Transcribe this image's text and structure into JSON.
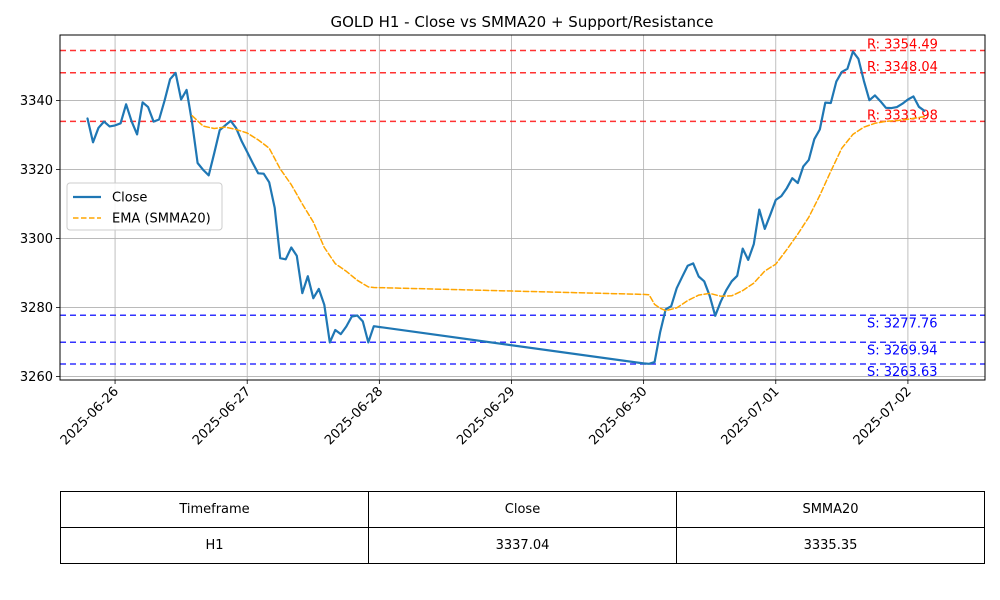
{
  "chart_data": {
    "type": "line",
    "title": "GOLD H1 - Close vs SMMA20 + Support/Resistance",
    "xlabel": "",
    "ylabel": "",
    "xlim": [
      "2025-06-25 14:00",
      "2025-07-02 14:00"
    ],
    "ylim": [
      3259,
      3359
    ],
    "grid": true,
    "legend_position": "upper-left",
    "x_ticks": [
      "2025-06-26",
      "2025-06-27",
      "2025-06-28",
      "2025-06-29",
      "2025-06-30",
      "2025-07-01",
      "2025-07-02"
    ],
    "y_ticks": [
      3260,
      3280,
      3300,
      3320,
      3340
    ],
    "series": [
      {
        "name": "Close",
        "color": "#1f77b4",
        "style": "solid",
        "x": [
          "2025-06-25 19:00",
          "2025-06-25 20:00",
          "2025-06-25 21:00",
          "2025-06-25 22:00",
          "2025-06-25 23:00",
          "2025-06-26 00:00",
          "2025-06-26 01:00",
          "2025-06-26 02:00",
          "2025-06-26 03:00",
          "2025-06-26 04:00",
          "2025-06-26 05:00",
          "2025-06-26 06:00",
          "2025-06-26 07:00",
          "2025-06-26 08:00",
          "2025-06-26 09:00",
          "2025-06-26 10:00",
          "2025-06-26 11:00",
          "2025-06-26 12:00",
          "2025-06-26 13:00",
          "2025-06-26 14:00",
          "2025-06-26 15:00",
          "2025-06-26 16:00",
          "2025-06-26 17:00",
          "2025-06-26 18:00",
          "2025-06-26 19:00",
          "2025-06-26 20:00",
          "2025-06-26 21:00",
          "2025-06-26 22:00",
          "2025-06-26 23:00",
          "2025-06-27 00:00",
          "2025-06-27 01:00",
          "2025-06-27 02:00",
          "2025-06-27 03:00",
          "2025-06-27 04:00",
          "2025-06-27 05:00",
          "2025-06-27 06:00",
          "2025-06-27 07:00",
          "2025-06-27 08:00",
          "2025-06-27 09:00",
          "2025-06-27 10:00",
          "2025-06-27 11:00",
          "2025-06-27 12:00",
          "2025-06-27 13:00",
          "2025-06-27 14:00",
          "2025-06-27 15:00",
          "2025-06-27 16:00",
          "2025-06-27 17:00",
          "2025-06-27 18:00",
          "2025-06-27 19:00",
          "2025-06-27 20:00",
          "2025-06-27 21:00",
          "2025-06-27 22:00",
          "2025-06-27 23:00",
          "2025-06-30 00:00",
          "2025-06-30 01:00",
          "2025-06-30 02:00",
          "2025-06-30 03:00",
          "2025-06-30 04:00",
          "2025-06-30 05:00",
          "2025-06-30 06:00",
          "2025-06-30 07:00",
          "2025-06-30 08:00",
          "2025-06-30 09:00",
          "2025-06-30 10:00",
          "2025-06-30 11:00",
          "2025-06-30 12:00",
          "2025-06-30 13:00",
          "2025-06-30 14:00",
          "2025-06-30 15:00",
          "2025-06-30 16:00",
          "2025-06-30 17:00",
          "2025-06-30 18:00",
          "2025-06-30 19:00",
          "2025-06-30 20:00",
          "2025-06-30 21:00",
          "2025-06-30 22:00",
          "2025-06-30 23:00",
          "2025-07-01 00:00",
          "2025-07-01 01:00",
          "2025-07-01 02:00",
          "2025-07-01 03:00",
          "2025-07-01 04:00",
          "2025-07-01 05:00",
          "2025-07-01 06:00",
          "2025-07-01 07:00",
          "2025-07-01 08:00",
          "2025-07-01 09:00",
          "2025-07-01 10:00",
          "2025-07-01 11:00",
          "2025-07-01 12:00",
          "2025-07-01 13:00",
          "2025-07-01 14:00",
          "2025-07-01 15:00",
          "2025-07-01 16:00",
          "2025-07-01 17:00",
          "2025-07-01 18:00",
          "2025-07-01 19:00",
          "2025-07-01 20:00",
          "2025-07-01 21:00",
          "2025-07-01 22:00",
          "2025-07-01 23:00",
          "2025-07-02 00:00",
          "2025-07-02 01:00",
          "2025-07-02 02:00",
          "2025-07-02 03:00"
        ],
        "values": [
          3334.8,
          3327.9,
          3332.1,
          3333.9,
          3332.5,
          3332.8,
          3333.4,
          3338.9,
          3334.0,
          3330.2,
          3339.5,
          3338.1,
          3333.9,
          3334.5,
          3340.0,
          3346.2,
          3348.0,
          3340.3,
          3343.1,
          3333.6,
          3321.9,
          3319.9,
          3318.3,
          3324.7,
          3331.4,
          3332.8,
          3334.1,
          3332.0,
          3328.2,
          3325.1,
          3321.9,
          3318.9,
          3318.8,
          3316.3,
          3308.9,
          3294.3,
          3294.0,
          3297.4,
          3295.0,
          3284.2,
          3289.1,
          3282.7,
          3285.4,
          3280.8,
          3269.9,
          3273.5,
          3272.3,
          3274.5,
          3277.4,
          3277.7,
          3276.0,
          3269.9,
          3274.6,
          3263.8,
          3263.7,
          3264.2,
          3272.8,
          3279.5,
          3280.4,
          3285.6,
          3288.9,
          3292.1,
          3292.8,
          3289.0,
          3287.6,
          3283.4,
          3277.6,
          3281.7,
          3285.0,
          3287.6,
          3289.2,
          3297.1,
          3293.8,
          3298.4,
          3308.4,
          3302.8,
          3306.9,
          3311.2,
          3312.3,
          3314.6,
          3317.5,
          3316.1,
          3320.9,
          3322.8,
          3328.8,
          3331.6,
          3339.4,
          3339.3,
          3345.5,
          3348.3,
          3349.2,
          3354.2,
          3352.1,
          3345.7,
          3340.1,
          3341.5,
          3339.8,
          3337.9,
          3337.8,
          3338.1,
          3339.1,
          3340.3,
          3341.2,
          3338.2,
          3337.04
        ]
      },
      {
        "name": "EMA (SMMA20)",
        "color": "#ffa500",
        "style": "dashed",
        "x": [
          "2025-06-26 14:00",
          "2025-06-26 16:00",
          "2025-06-26 18:00",
          "2025-06-26 20:00",
          "2025-06-26 22:00",
          "2025-06-27 00:00",
          "2025-06-27 02:00",
          "2025-06-27 04:00",
          "2025-06-27 06:00",
          "2025-06-27 08:00",
          "2025-06-27 10:00",
          "2025-06-27 12:00",
          "2025-06-27 14:00",
          "2025-06-27 16:00",
          "2025-06-27 18:00",
          "2025-06-27 20:00",
          "2025-06-27 22:00",
          "2025-06-27 23:00",
          "2025-06-30 00:00",
          "2025-06-30 01:00",
          "2025-06-30 02:00",
          "2025-06-30 03:00",
          "2025-06-30 04:00",
          "2025-06-30 06:00",
          "2025-06-30 08:00",
          "2025-06-30 10:00",
          "2025-06-30 12:00",
          "2025-06-30 14:00",
          "2025-06-30 16:00",
          "2025-06-30 18:00",
          "2025-06-30 20:00",
          "2025-06-30 22:00",
          "2025-07-01 00:00",
          "2025-07-01 02:00",
          "2025-07-01 04:00",
          "2025-07-01 06:00",
          "2025-07-01 08:00",
          "2025-07-01 10:00",
          "2025-07-01 12:00",
          "2025-07-01 14:00",
          "2025-07-01 16:00",
          "2025-07-01 18:00",
          "2025-07-01 20:00",
          "2025-07-01 22:00",
          "2025-07-02 00:00",
          "2025-07-02 02:00",
          "2025-07-02 03:00"
        ],
        "values": [
          3335.6,
          3332.6,
          3331.9,
          3332.3,
          3331.6,
          3330.6,
          3328.6,
          3326.2,
          3320.2,
          3315.6,
          3310.0,
          3304.8,
          3297.4,
          3292.7,
          3290.5,
          3287.9,
          3286.0,
          3285.8,
          3283.8,
          3283.7,
          3280.9,
          3279.8,
          3279.1,
          3279.9,
          3282.0,
          3283.6,
          3284.1,
          3283.3,
          3283.4,
          3284.9,
          3287.1,
          3290.6,
          3292.6,
          3296.8,
          3301.3,
          3306.2,
          3312.5,
          3319.5,
          3326.2,
          3330.2,
          3332.3,
          3333.4,
          3334.0,
          3334.2,
          3334.6,
          3335.1,
          3335.35
        ]
      }
    ],
    "reference_lines": [
      {
        "label": "R: 3354.49",
        "value": 3354.49,
        "kind": "resistance",
        "color": "#ff0000"
      },
      {
        "label": "R: 3348.04",
        "value": 3348.04,
        "kind": "resistance",
        "color": "#ff0000"
      },
      {
        "label": "R: 3333.98",
        "value": 3333.98,
        "kind": "resistance",
        "color": "#ff0000"
      },
      {
        "label": "S: 3277.76",
        "value": 3277.76,
        "kind": "support",
        "color": "#0000ff"
      },
      {
        "label": "S: 3269.94",
        "value": 3269.94,
        "kind": "support",
        "color": "#0000ff"
      },
      {
        "label": "S: 3263.63",
        "value": 3263.63,
        "kind": "support",
        "color": "#0000ff"
      }
    ]
  },
  "summary_table": {
    "headers": [
      "Timeframe",
      "Close",
      "SMMA20"
    ],
    "row": [
      "H1",
      "3337.04",
      "3335.35"
    ]
  }
}
